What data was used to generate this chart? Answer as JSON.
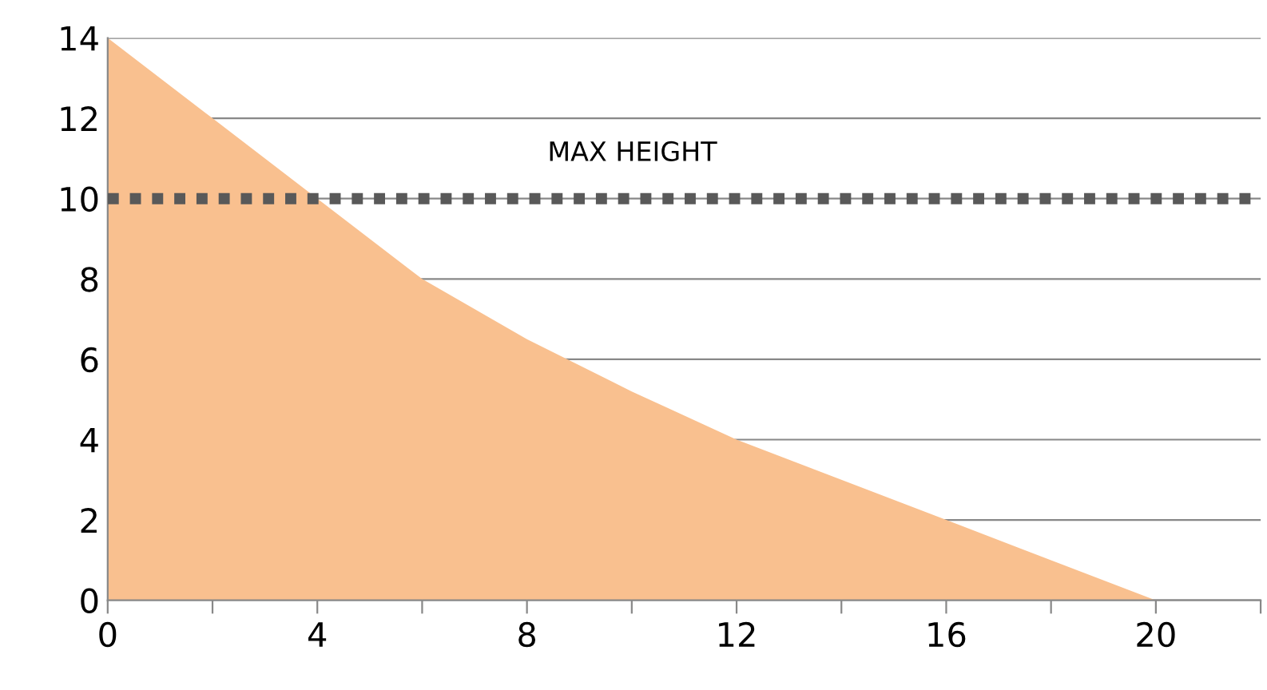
{
  "chart_data": {
    "type": "area",
    "x": [
      0,
      2,
      4,
      6,
      8,
      10,
      12,
      14,
      16,
      18,
      20
    ],
    "series": [
      {
        "color": "#f9c08f",
        "values": [
          14,
          12,
          10,
          8,
          6.5,
          5.2,
          4,
          3,
          2,
          1,
          0
        ]
      }
    ],
    "xlim": [
      0,
      22
    ],
    "xticks": [
      0,
      {
        "value": 2,
        "label": null
      },
      4,
      {
        "value": 6,
        "label": null
      },
      8,
      {
        "value": 10,
        "label": null
      },
      12,
      {
        "value": 14,
        "label": null
      },
      16,
      {
        "value": 18,
        "label": null
      },
      20,
      {
        "value": 22,
        "label": null
      }
    ],
    "ylim": [
      0,
      14
    ],
    "yticks": [
      0,
      2,
      4,
      6,
      8,
      10,
      12,
      14
    ],
    "grid": "y",
    "ref_lines": [
      {
        "axis": "y",
        "value": 10,
        "label": "MAX HEIGHT",
        "color": "#595959",
        "line_style": "dotted"
      }
    ]
  }
}
